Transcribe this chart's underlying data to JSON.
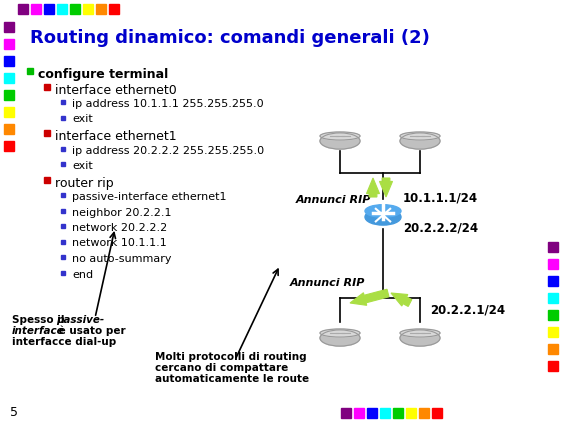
{
  "title": "Routing dinamico: comandi generali (2)",
  "title_color": "#0000CC",
  "bg_color": "#FFFFFF",
  "page_number": "5",
  "sq_colors": [
    "#800080",
    "#FF00FF",
    "#0000FF",
    "#00FFFF",
    "#00CC00",
    "#FFFF00",
    "#FF8800",
    "#FF0000"
  ],
  "content_lines": [
    {
      "indent": 0,
      "bullet": "green",
      "text": "configure terminal",
      "bold": true,
      "size": 9
    },
    {
      "indent": 1,
      "bullet": "red",
      "text": "interface ethernet0",
      "bold": false,
      "size": 9
    },
    {
      "indent": 2,
      "bullet": "blue",
      "text": "ip address 10.1.1.1 255.255.255.0",
      "bold": false,
      "size": 8
    },
    {
      "indent": 2,
      "bullet": "blue",
      "text": "exit",
      "bold": false,
      "size": 8
    },
    {
      "indent": 1,
      "bullet": "red",
      "text": "interface ethernet1",
      "bold": false,
      "size": 9
    },
    {
      "indent": 2,
      "bullet": "blue",
      "text": "ip address 20.2.2.2 255.255.255.0",
      "bold": false,
      "size": 8
    },
    {
      "indent": 2,
      "bullet": "blue",
      "text": "exit",
      "bold": false,
      "size": 8
    },
    {
      "indent": 1,
      "bullet": "red",
      "text": "router rip",
      "bold": false,
      "size": 9
    },
    {
      "indent": 2,
      "bullet": "blue",
      "text": "passive-interface ethernet1",
      "bold": false,
      "size": 8
    },
    {
      "indent": 2,
      "bullet": "blue",
      "text": "neighbor 20.2.2.1",
      "bold": false,
      "size": 8
    },
    {
      "indent": 2,
      "bullet": "blue",
      "text": "network 20.2.2.2",
      "bold": false,
      "size": 8
    },
    {
      "indent": 2,
      "bullet": "blue",
      "text": "network 10.1.1.1",
      "bold": false,
      "size": 8
    },
    {
      "indent": 2,
      "bullet": "blue",
      "text": "no auto-summary",
      "bold": false,
      "size": 8
    },
    {
      "indent": 2,
      "bullet": "blue",
      "text": "end",
      "bold": false,
      "size": 8
    }
  ],
  "annunci_rip1": "Annunci RIP",
  "annunci_rip2": "Annunci RIP",
  "net1_label": "10.1.1.1/24",
  "net2_label": "20.2.2.2/24",
  "net3_label": "20.2.2.1/24",
  "arrow_color": "#AADE44",
  "arrow_edge_color": "#88BB22"
}
